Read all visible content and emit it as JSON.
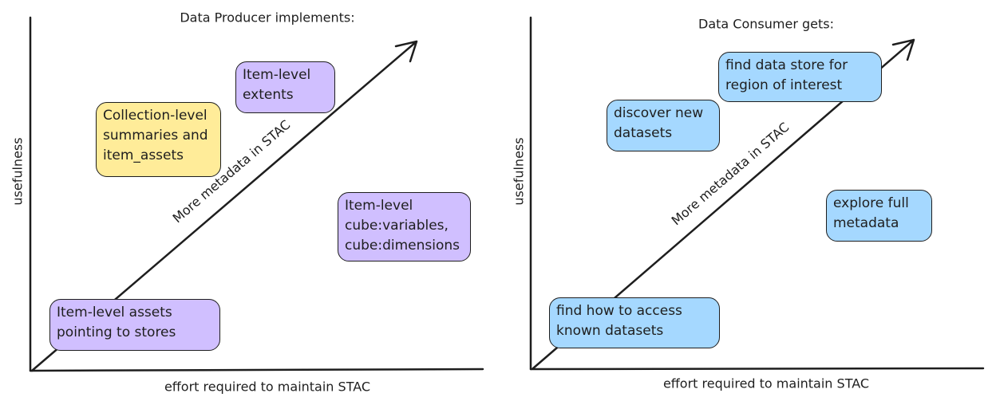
{
  "colors": {
    "yellow": "#ffec99",
    "purple": "#d0bfff",
    "blue": "#a5d8ff",
    "stroke": "#1e1e1e"
  },
  "left": {
    "title": "Data Producer implements:",
    "ylabel": "usefulness",
    "xlabel": "effort required to maintain STAC",
    "arrow_label": "More metadata in STAC",
    "boxes": [
      [
        "Item-level",
        "extents"
      ],
      [
        "Collection-level",
        "summaries and",
        "item_assets"
      ],
      [
        "Item-level",
        "cube:variables,",
        "cube:dimensions"
      ],
      [
        "Item-level assets",
        "pointing to stores"
      ]
    ]
  },
  "right": {
    "title": "Data Consumer gets:",
    "ylabel": "usefulness",
    "xlabel": "effort required to maintain STAC",
    "arrow_label": "More metadata in STAC",
    "boxes": [
      [
        "find data store for",
        "region of interest"
      ],
      [
        "discover new",
        "datasets"
      ],
      [
        "explore full",
        "metadata"
      ],
      [
        "find how to access",
        "known datasets"
      ]
    ]
  }
}
